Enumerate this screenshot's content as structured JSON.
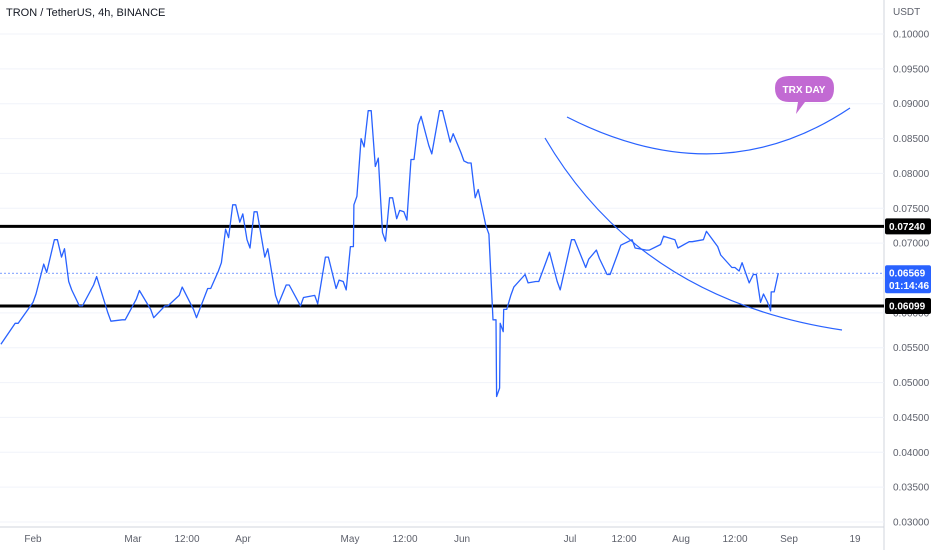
{
  "header": {
    "title": "TRON / TetherUS, 4h, BINANCE"
  },
  "axis": {
    "unit": "USDT"
  },
  "colors": {
    "line": "#2962ff",
    "hline": "#000000",
    "curve": "#2962ff",
    "tag_dark": "#000000",
    "tag_price": "#2962ff",
    "callout": "#c26ad3"
  },
  "callout": {
    "text": "TRX DAY"
  },
  "price_tags": {
    "resistance": "0.07240",
    "support": "0.06099",
    "last": "0.06569",
    "countdown": "01:14:46"
  },
  "chart_data": {
    "type": "line",
    "title": "TRON / TetherUS, 4h, BINANCE",
    "xlabel": "",
    "ylabel": "USDT",
    "ylim": [
      0.03,
      0.1
    ],
    "x_ticks": [
      "Feb",
      "Mar",
      "12:00",
      "Apr",
      "May",
      "12:00",
      "Jun",
      "Jul",
      "12:00",
      "Aug",
      "12:00",
      "Sep",
      "19"
    ],
    "y_ticks": [
      "0.10000",
      "0.09500",
      "0.09000",
      "0.08500",
      "0.08000",
      "0.07500",
      "0.07000",
      "0.06500",
      "0.06000",
      "0.05500",
      "0.05000",
      "0.04500",
      "0.04000",
      "0.03500",
      "0.03000"
    ],
    "horizontal_lines": [
      0.0724,
      0.06099
    ],
    "last_price": 0.06569,
    "series": [
      {
        "x": [
          "Jan 23",
          "Jan 27",
          "Feb 1",
          "Feb 4",
          "Feb 7",
          "Feb 9",
          "Feb 11",
          "Feb 14",
          "Feb 18",
          "Feb 22",
          "Feb 26",
          "Mar 2",
          "Mar 6",
          "Mar 10",
          "Mar 14",
          "Mar 18",
          "Mar 22",
          "Mar 25",
          "Mar 27",
          "Mar 29",
          "Mar 31",
          "Apr 2",
          "Apr 4",
          "Apr 7",
          "Apr 10",
          "Apr 13",
          "Apr 17",
          "Apr 21",
          "Apr 24",
          "Apr 27",
          "Apr 29",
          "May 1",
          "May 2",
          "May 4",
          "May 6",
          "May 8",
          "May 10",
          "May 12",
          "May 14",
          "May 16",
          "May 18",
          "May 20",
          "May 23",
          "May 26",
          "May 29",
          "Jun 1",
          "Jun 3",
          "Jun 5",
          "Jun 8",
          "Jun 10",
          "Jun 11",
          "Jun 12",
          "Jun 13",
          "Jun 15",
          "Jun 19",
          "Jun 22",
          "Jun 25",
          "Jun 28",
          "Jul 2",
          "Jul 6",
          "Jul 9",
          "Jul 12",
          "Jul 15",
          "Jul 19",
          "Jul 23",
          "Jul 27",
          "Jul 31",
          "Aug 4",
          "Aug 8",
          "Aug 12",
          "Aug 16",
          "Aug 18",
          "Aug 20",
          "Aug 22",
          "Aug 24",
          "Aug 26",
          "Aug 27",
          "Aug 29"
        ],
        "y": [
          0.0555,
          0.0585,
          0.0615,
          0.067,
          0.0705,
          0.068,
          0.0645,
          0.061,
          0.064,
          0.06,
          0.059,
          0.062,
          0.0605,
          0.061,
          0.0625,
          0.0605,
          0.0635,
          0.066,
          0.072,
          0.0755,
          0.073,
          0.0705,
          0.0745,
          0.068,
          0.0625,
          0.064,
          0.061,
          0.0625,
          0.068,
          0.0635,
          0.0645,
          0.0695,
          0.0755,
          0.085,
          0.089,
          0.081,
          0.0715,
          0.0765,
          0.0735,
          0.0745,
          0.082,
          0.087,
          0.084,
          0.089,
          0.0845,
          0.083,
          0.0815,
          0.0765,
          0.0725,
          0.059,
          0.048,
          0.0585,
          0.0605,
          0.0625,
          0.0655,
          0.0645,
          0.0675,
          0.0645,
          0.0705,
          0.0665,
          0.069,
          0.0655,
          0.0685,
          0.0705,
          0.069,
          0.0698,
          0.0705,
          0.0702,
          0.0705,
          0.0695,
          0.0665,
          0.066,
          0.0655,
          0.0655,
          0.0615,
          0.0615,
          0.063,
          0.0657
        ]
      }
    ]
  }
}
